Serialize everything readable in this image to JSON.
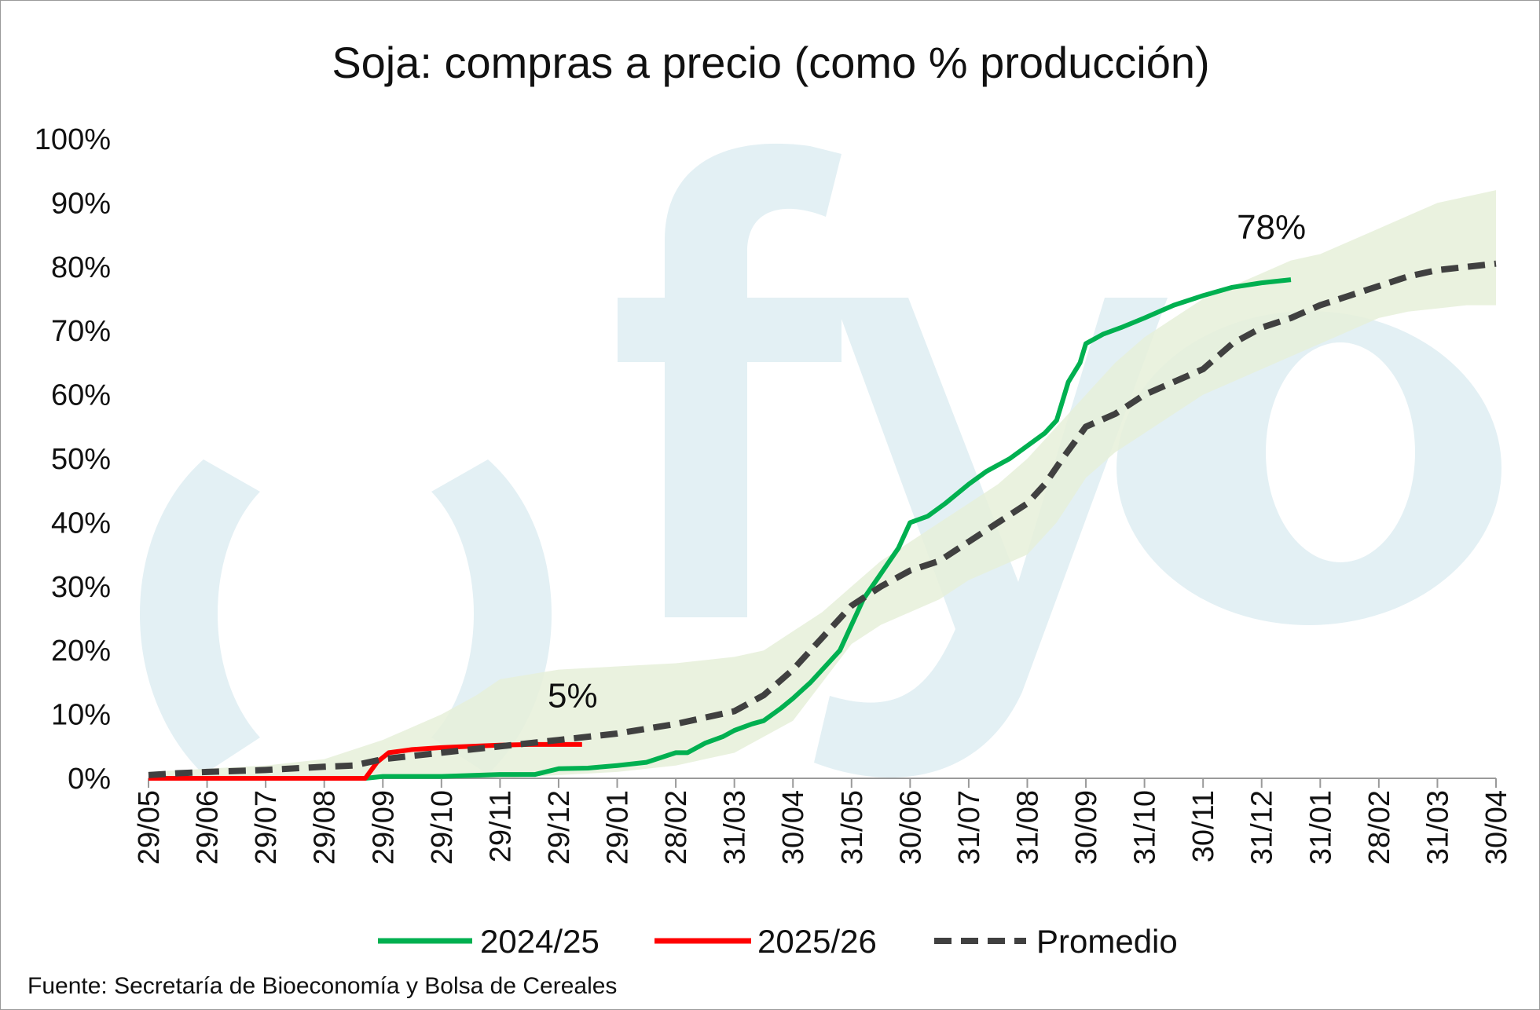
{
  "chart_data": {
    "type": "line",
    "title": "Soja: compras a precio (como % producción)",
    "source": "Fuente: Secretaría de Bioeconomía y Bolsa de Cereales",
    "watermark": "fyo",
    "x_ticks": [
      "29/05",
      "29/06",
      "29/07",
      "29/08",
      "29/09",
      "29/10",
      "29/11",
      "29/12",
      "29/01",
      "28/02",
      "31/03",
      "30/04",
      "31/05",
      "30/06",
      "31/07",
      "31/08",
      "30/09",
      "31/10",
      "30/11",
      "31/12",
      "31/01",
      "28/02",
      "31/03",
      "30/04"
    ],
    "y_ticks": [
      "0%",
      "10%",
      "20%",
      "30%",
      "40%",
      "50%",
      "60%",
      "70%",
      "80%",
      "90%",
      "100%"
    ],
    "ylim": [
      0,
      100
    ],
    "x_range_months": [
      0,
      23
    ],
    "annotations": [
      {
        "text": "78%",
        "series": "2024/25",
        "x": 19.3,
        "y": 78
      },
      {
        "text": "5%",
        "series": "2025/26",
        "x": 7.4,
        "y": 5
      }
    ],
    "band": {
      "color": "#e6f0d9",
      "upper": [
        [
          0,
          1
        ],
        [
          1,
          1.5
        ],
        [
          2,
          2
        ],
        [
          3,
          3
        ],
        [
          4,
          6
        ],
        [
          5,
          10
        ],
        [
          5.6,
          13
        ],
        [
          6,
          15.5
        ],
        [
          7,
          17
        ],
        [
          8,
          17.5
        ],
        [
          9,
          18
        ],
        [
          10,
          19
        ],
        [
          10.5,
          20
        ],
        [
          11,
          23
        ],
        [
          11.5,
          26
        ],
        [
          12,
          30
        ],
        [
          12.5,
          34
        ],
        [
          13,
          37
        ],
        [
          13.5,
          40
        ],
        [
          14,
          43
        ],
        [
          14.5,
          46
        ],
        [
          15,
          50
        ],
        [
          15.5,
          55
        ],
        [
          16,
          60
        ],
        [
          16.5,
          65
        ],
        [
          17,
          69
        ],
        [
          17.5,
          72
        ],
        [
          18,
          75
        ],
        [
          18.5,
          77
        ],
        [
          19,
          79
        ],
        [
          19.5,
          81
        ],
        [
          20,
          82
        ],
        [
          20.5,
          84
        ],
        [
          21,
          86
        ],
        [
          21.5,
          88
        ],
        [
          22,
          90
        ],
        [
          22.5,
          91
        ],
        [
          23,
          92
        ]
      ],
      "lower": [
        [
          0,
          0
        ],
        [
          1,
          0
        ],
        [
          2,
          0
        ],
        [
          3,
          0
        ],
        [
          4,
          0
        ],
        [
          5,
          0
        ],
        [
          6,
          0
        ],
        [
          7,
          0.5
        ],
        [
          8,
          1
        ],
        [
          9,
          2
        ],
        [
          10,
          4
        ],
        [
          11,
          9
        ],
        [
          11.5,
          15
        ],
        [
          12,
          21
        ],
        [
          12.5,
          24
        ],
        [
          13,
          26
        ],
        [
          13.5,
          28
        ],
        [
          14,
          31
        ],
        [
          14.5,
          33
        ],
        [
          15,
          35
        ],
        [
          15.5,
          40
        ],
        [
          16,
          47
        ],
        [
          16.5,
          51
        ],
        [
          17,
          54
        ],
        [
          17.5,
          57
        ],
        [
          18,
          60
        ],
        [
          18.5,
          62
        ],
        [
          19,
          64
        ],
        [
          19.5,
          66
        ],
        [
          20,
          68
        ],
        [
          20.5,
          70
        ],
        [
          21,
          72
        ],
        [
          21.5,
          73
        ],
        [
          22,
          73.5
        ],
        [
          22.5,
          74
        ],
        [
          23,
          74
        ]
      ]
    },
    "series": [
      {
        "name": "2024/25",
        "color": "#00b050",
        "style": "solid",
        "points": [
          [
            0,
            0
          ],
          [
            1,
            0
          ],
          [
            2,
            0
          ],
          [
            3,
            0
          ],
          [
            3.7,
            0
          ],
          [
            4,
            0.3
          ],
          [
            5,
            0.3
          ],
          [
            6,
            0.6
          ],
          [
            6.6,
            0.6
          ],
          [
            7,
            1.5
          ],
          [
            7.5,
            1.6
          ],
          [
            8,
            2
          ],
          [
            8.5,
            2.5
          ],
          [
            9,
            4
          ],
          [
            9.2,
            4
          ],
          [
            9.5,
            5.5
          ],
          [
            9.8,
            6.5
          ],
          [
            10,
            7.5
          ],
          [
            10.3,
            8.5
          ],
          [
            10.5,
            9
          ],
          [
            10.8,
            11
          ],
          [
            11,
            12.5
          ],
          [
            11.3,
            15
          ],
          [
            11.6,
            18
          ],
          [
            11.8,
            20
          ],
          [
            12,
            24
          ],
          [
            12.2,
            28
          ],
          [
            12.5,
            32
          ],
          [
            12.8,
            36
          ],
          [
            13,
            40
          ],
          [
            13.3,
            41
          ],
          [
            13.6,
            43
          ],
          [
            14,
            46
          ],
          [
            14.3,
            48
          ],
          [
            14.7,
            50
          ],
          [
            15,
            52
          ],
          [
            15.3,
            54
          ],
          [
            15.5,
            56
          ],
          [
            15.7,
            62
          ],
          [
            15.9,
            65
          ],
          [
            16,
            68
          ],
          [
            16.3,
            69.5
          ],
          [
            16.6,
            70.5
          ],
          [
            17,
            72
          ],
          [
            17.5,
            74
          ],
          [
            18,
            75.5
          ],
          [
            18.5,
            76.8
          ],
          [
            19,
            77.5
          ],
          [
            19.5,
            78
          ]
        ]
      },
      {
        "name": "2025/26",
        "color": "#ff0000",
        "style": "solid",
        "points": [
          [
            0,
            0
          ],
          [
            1,
            0
          ],
          [
            2,
            0
          ],
          [
            3,
            0
          ],
          [
            3.7,
            0
          ],
          [
            3.9,
            2.5
          ],
          [
            4.1,
            4
          ],
          [
            4.5,
            4.5
          ],
          [
            5,
            4.8
          ],
          [
            5.5,
            5
          ],
          [
            6,
            5.2
          ],
          [
            6.5,
            5.3
          ],
          [
            7,
            5.3
          ],
          [
            7.4,
            5.3
          ]
        ]
      },
      {
        "name": "Promedio",
        "color": "#404040",
        "style": "dashed",
        "points": [
          [
            0,
            0.5
          ],
          [
            0.5,
            0.8
          ],
          [
            1,
            1
          ],
          [
            2,
            1.3
          ],
          [
            3,
            1.8
          ],
          [
            3.5,
            2
          ],
          [
            4,
            3
          ],
          [
            5,
            4
          ],
          [
            6,
            5
          ],
          [
            7,
            6
          ],
          [
            8,
            7
          ],
          [
            9,
            8.5
          ],
          [
            10,
            10.5
          ],
          [
            10.5,
            13
          ],
          [
            11,
            17
          ],
          [
            11.5,
            22
          ],
          [
            12,
            27
          ],
          [
            12.5,
            30
          ],
          [
            13,
            32.5
          ],
          [
            13.5,
            34
          ],
          [
            14,
            37
          ],
          [
            14.5,
            40
          ],
          [
            15,
            43
          ],
          [
            15.3,
            46
          ],
          [
            15.6,
            50
          ],
          [
            16,
            55
          ],
          [
            16.5,
            57
          ],
          [
            17,
            60
          ],
          [
            17.5,
            62
          ],
          [
            18,
            64
          ],
          [
            18.5,
            68
          ],
          [
            19,
            70.5
          ],
          [
            19.5,
            72
          ],
          [
            20,
            74
          ],
          [
            20.5,
            75.5
          ],
          [
            21,
            77
          ],
          [
            21.5,
            78.5
          ],
          [
            22,
            79.5
          ],
          [
            22.5,
            80
          ],
          [
            23,
            80.5
          ]
        ]
      }
    ],
    "legend": {
      "position": "bottom",
      "items": [
        "2024/25",
        "2025/26",
        "Promedio"
      ]
    },
    "grid": false
  }
}
